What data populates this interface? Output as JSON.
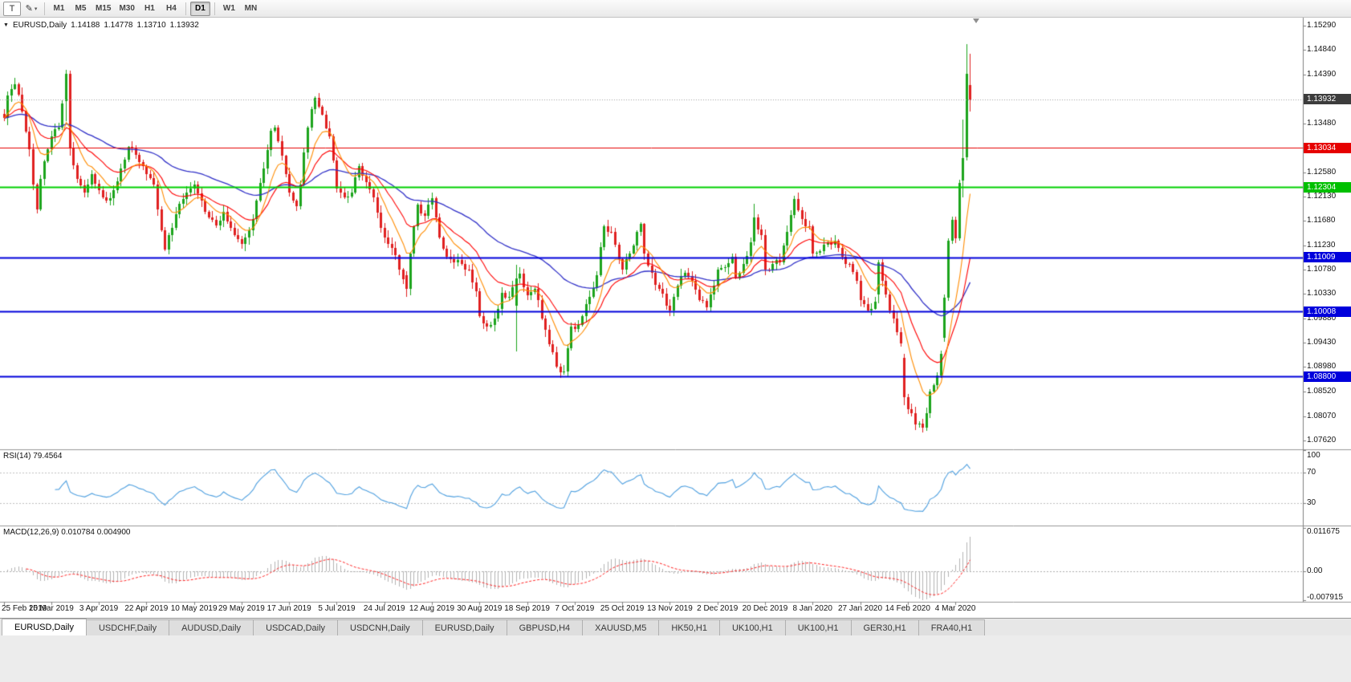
{
  "toolbar": {
    "tools": [
      {
        "label": "T",
        "name": "text-tool-button",
        "boxed": true
      },
      {
        "label": "✎",
        "name": "draw-tool-button",
        "dropdown": true
      }
    ],
    "timeframe_groups": [
      [
        "M1",
        "M5",
        "M15",
        "M30",
        "H1",
        "H4"
      ],
      [
        "D1"
      ],
      [
        "W1",
        "MN"
      ]
    ],
    "active_timeframe": "D1"
  },
  "icons": {
    "symbol_dropdown": "▼",
    "dropdown_small": "▾"
  },
  "chart": {
    "symbol": "EURUSD,Daily",
    "open": "1.14188",
    "high": "1.14778",
    "low": "1.13710",
    "close": "1.13932"
  },
  "price_axis": {
    "ticks": [
      "1.15290",
      "1.14840",
      "1.14390",
      "1.13930",
      "1.13480",
      "1.13030",
      "1.12580",
      "1.12130",
      "1.11680",
      "1.11230",
      "1.10780",
      "1.10330",
      "1.09880",
      "1.09430",
      "1.08980",
      "1.08520",
      "1.08070",
      "1.07620"
    ],
    "badges": [
      {
        "text": "1.13932",
        "price": 1.13932,
        "bg": "#3c3c3c",
        "name": "last-price-badge"
      },
      {
        "text": "1.13034",
        "price": 1.13034,
        "bg": "#e60000",
        "name": "red-hline-badge"
      },
      {
        "text": "1.12304",
        "price": 1.12304,
        "bg": "#00c000",
        "name": "green-hline-badge"
      },
      {
        "text": "1.11009",
        "price": 1.11009,
        "bg": "#0000dc",
        "name": "blue-hline-badge-1"
      },
      {
        "text": "1.10008",
        "price": 1.10008,
        "bg": "#0000dc",
        "name": "blue-hline-badge-2"
      },
      {
        "text": "1.08800",
        "price": 1.088,
        "bg": "#0000dc",
        "name": "blue-hline-badge-3"
      }
    ]
  },
  "rsi": {
    "label": "RSI(14)",
    "value": "79.4564",
    "scale": [
      {
        "text": "100",
        "value": 100,
        "line": false
      },
      {
        "text": "70",
        "value": 70,
        "line": true
      },
      {
        "text": "30",
        "value": 30,
        "line": true
      }
    ]
  },
  "macd": {
    "label": "MACD(12,26,9)",
    "value": "0.010784 0.004900",
    "scale": [
      {
        "text": "0.011675",
        "value": 0.011675
      },
      {
        "text": "0.00",
        "value": 0
      },
      {
        "text": "-0.007915",
        "value": -0.007915
      }
    ]
  },
  "date_axis": {
    "labels": [
      {
        "text": "25 Feb 2019",
        "index": 0
      },
      {
        "text": "15 Mar 2019",
        "index": 13
      },
      {
        "text": "3 Apr 2019",
        "index": 26
      },
      {
        "text": "22 Apr 2019",
        "index": 39
      },
      {
        "text": "10 May 2019",
        "index": 52
      },
      {
        "text": "29 May 2019",
        "index": 65
      },
      {
        "text": "17 Jun 2019",
        "index": 78
      },
      {
        "text": "5 Jul 2019",
        "index": 91
      },
      {
        "text": "24 Jul 2019",
        "index": 104
      },
      {
        "text": "12 Aug 2019",
        "index": 117
      },
      {
        "text": "30 Aug 2019",
        "index": 130
      },
      {
        "text": "18 Sep 2019",
        "index": 143
      },
      {
        "text": "7 Oct 2019",
        "index": 156
      },
      {
        "text": "25 Oct 2019",
        "index": 169
      },
      {
        "text": "13 Nov 2019",
        "index": 182
      },
      {
        "text": "2 Dec 2019",
        "index": 195
      },
      {
        "text": "20 Dec 2019",
        "index": 208
      },
      {
        "text": "8 Jan 2020",
        "index": 221
      },
      {
        "text": "27 Jan 2020",
        "index": 234
      },
      {
        "text": "14 Feb 2020",
        "index": 247
      },
      {
        "text": "4 Mar 2020",
        "index": 260
      }
    ]
  },
  "tabs": {
    "items": [
      {
        "label": "EURUSD,Daily",
        "active": true
      },
      {
        "label": "USDCHF,Daily",
        "active": false
      },
      {
        "label": "AUDUSD,Daily",
        "active": false
      },
      {
        "label": "USDCAD,Daily",
        "active": false
      },
      {
        "label": "USDCNH,Daily",
        "active": false
      },
      {
        "label": "EURUSD,Daily",
        "active": false
      },
      {
        "label": "GBPUSD,H4",
        "active": false
      },
      {
        "label": "XAUUSD,M5",
        "active": false
      },
      {
        "label": "HK50,H1",
        "active": false
      },
      {
        "label": "UK100,H1",
        "active": false
      },
      {
        "label": "UK100,H1",
        "active": false
      },
      {
        "label": "GER30,H1",
        "active": false
      },
      {
        "label": "FRA40,H1",
        "active": false
      }
    ]
  },
  "colors": {
    "candle_up": "#1ca41c",
    "candle_down": "#e02020",
    "ma_fast": "#ff8c00",
    "ma_mid": "#ff0000",
    "ma_slow": "#3030c8",
    "rsi_line": "#4fa0e0",
    "macd_hist": "#b4b4b4",
    "macd_signal": "#ff2020",
    "bid_line": "#a0a0a0",
    "pane_border": "#979797",
    "level_dotted": "#c0c0c0"
  },
  "chart_data": {
    "type": "candlestick",
    "symbol": "EURUSD",
    "timeframe": "Daily",
    "title": "EURUSD,Daily 1.14188 1.14778 1.13710 1.13932",
    "bar_count": 265,
    "price_axis_top": 1.1529,
    "price_axis_bottom": 1.0762,
    "last_bar_ohlc": {
      "open": 1.14188,
      "high": 1.14778,
      "low": 1.1371,
      "close": 1.13932
    },
    "close_anchors": [
      [
        0,
        1.1358
      ],
      [
        1,
        1.14
      ],
      [
        3,
        1.142
      ],
      [
        5,
        1.137
      ],
      [
        7,
        1.13
      ],
      [
        8,
        1.1235
      ],
      [
        9,
        1.119
      ],
      [
        10,
        1.1245
      ],
      [
        12,
        1.13
      ],
      [
        13,
        1.1325
      ],
      [
        15,
        1.134
      ],
      [
        16,
        1.1385
      ],
      [
        17,
        1.144
      ],
      [
        18,
        1.1302
      ],
      [
        20,
        1.1245
      ],
      [
        22,
        1.122
      ],
      [
        24,
        1.1255
      ],
      [
        26,
        1.1225
      ],
      [
        28,
        1.1205
      ],
      [
        30,
        1.1225
      ],
      [
        32,
        1.1265
      ],
      [
        34,
        1.1305
      ],
      [
        36,
        1.129
      ],
      [
        38,
        1.127
      ],
      [
        39,
        1.1255
      ],
      [
        41,
        1.1235
      ],
      [
        43,
        1.115
      ],
      [
        44,
        1.1115
      ],
      [
        46,
        1.1155
      ],
      [
        48,
        1.12
      ],
      [
        50,
        1.122
      ],
      [
        52,
        1.1235
      ],
      [
        54,
        1.1205
      ],
      [
        56,
        1.1175
      ],
      [
        58,
        1.116
      ],
      [
        60,
        1.1185
      ],
      [
        62,
        1.1155
      ],
      [
        64,
        1.1135
      ],
      [
        65,
        1.1125
      ],
      [
        67,
        1.115
      ],
      [
        69,
        1.1205
      ],
      [
        71,
        1.1265
      ],
      [
        73,
        1.1335
      ],
      [
        74,
        1.134
      ],
      [
        75,
        1.1315
      ],
      [
        77,
        1.1255
      ],
      [
        78,
        1.122
      ],
      [
        79,
        1.1205
      ],
      [
        80,
        1.1195
      ],
      [
        81,
        1.1235
      ],
      [
        82,
        1.1295
      ],
      [
        84,
        1.1375
      ],
      [
        85,
        1.1395
      ],
      [
        87,
        1.1365
      ],
      [
        89,
        1.1325
      ],
      [
        90,
        1.128
      ],
      [
        91,
        1.1228
      ],
      [
        93,
        1.1212
      ],
      [
        95,
        1.122
      ],
      [
        97,
        1.127
      ],
      [
        99,
        1.124
      ],
      [
        101,
        1.1212
      ],
      [
        103,
        1.1155
      ],
      [
        104,
        1.1138
      ],
      [
        106,
        1.1118
      ],
      [
        108,
        1.1078
      ],
      [
        109,
        1.106
      ],
      [
        110,
        1.1042
      ],
      [
        111,
        1.1108
      ],
      [
        113,
        1.1198
      ],
      [
        115,
        1.1178
      ],
      [
        117,
        1.121
      ],
      [
        119,
        1.1138
      ],
      [
        121,
        1.1102
      ],
      [
        123,
        1.1092
      ],
      [
        125,
        1.1088
      ],
      [
        127,
        1.1078
      ],
      [
        129,
        1.1038
      ],
      [
        130,
        1.0992
      ],
      [
        132,
        1.0972
      ],
      [
        134,
        1.0988
      ],
      [
        136,
        1.1035
      ],
      [
        138,
        1.1028
      ],
      [
        140,
        1.1062
      ],
      [
        141,
        1.107
      ],
      [
        142,
        1.1045
      ],
      [
        143,
        1.103
      ],
      [
        145,
        1.1042
      ],
      [
        147,
        1.0988
      ],
      [
        149,
        1.094
      ],
      [
        151,
        1.0898
      ],
      [
        153,
        1.089
      ],
      [
        154,
        1.0932
      ],
      [
        155,
        1.0972
      ],
      [
        156,
        1.0968
      ],
      [
        158,
        1.0992
      ],
      [
        160,
        1.1028
      ],
      [
        162,
        1.1068
      ],
      [
        163,
        1.112
      ],
      [
        164,
        1.1158
      ],
      [
        166,
        1.1148
      ],
      [
        168,
        1.1098
      ],
      [
        169,
        1.1078
      ],
      [
        171,
        1.1108
      ],
      [
        173,
        1.1148
      ],
      [
        174,
        1.1162
      ],
      [
        175,
        1.1108
      ],
      [
        177,
        1.1072
      ],
      [
        179,
        1.1042
      ],
      [
        181,
        1.1012
      ],
      [
        182,
        1.1002
      ],
      [
        184,
        1.1048
      ],
      [
        186,
        1.1072
      ],
      [
        188,
        1.1058
      ],
      [
        190,
        1.1022
      ],
      [
        192,
        1.1008
      ],
      [
        194,
        1.1048
      ],
      [
        195,
        1.1078
      ],
      [
        197,
        1.1082
      ],
      [
        199,
        1.1102
      ],
      [
        200,
        1.1062
      ],
      [
        202,
        1.1088
      ],
      [
        204,
        1.1128
      ],
      [
        205,
        1.1175
      ],
      [
        206,
        1.1152
      ],
      [
        207,
        1.1142
      ],
      [
        208,
        1.1078
      ],
      [
        210,
        1.1088
      ],
      [
        212,
        1.1092
      ],
      [
        214,
        1.1148
      ],
      [
        216,
        1.1208
      ],
      [
        218,
        1.1172
      ],
      [
        220,
        1.1158
      ],
      [
        221,
        1.1108
      ],
      [
        223,
        1.1112
      ],
      [
        225,
        1.1128
      ],
      [
        227,
        1.1132
      ],
      [
        229,
        1.1102
      ],
      [
        231,
        1.1088
      ],
      [
        233,
        1.1058
      ],
      [
        234,
        1.1022
      ],
      [
        236,
        1.1002
      ],
      [
        238,
        1.1018
      ],
      [
        239,
        1.1092
      ],
      [
        240,
        1.1058
      ],
      [
        242,
        1.1002
      ],
      [
        244,
        1.0962
      ],
      [
        245,
        1.0942
      ],
      [
        246,
        1.0842
      ],
      [
        248,
        1.0812
      ],
      [
        249,
        1.0792
      ],
      [
        251,
        1.0786
      ],
      [
        253,
        1.0852
      ],
      [
        255,
        1.0882
      ],
      [
        256,
        1.0922
      ],
      [
        257,
        1.1026
      ],
      [
        258,
        1.1132
      ],
      [
        259,
        1.117
      ],
      [
        260,
        1.1136
      ],
      [
        261,
        1.1238
      ],
      [
        262,
        1.1284
      ],
      [
        263,
        1.144
      ],
      [
        264,
        1.13932
      ]
    ],
    "explicit_bars": {
      "17": {
        "o": 1.139,
        "h": 1.1448,
        "l": 1.1352,
        "c": 1.144
      },
      "18": {
        "o": 1.144,
        "h": 1.1446,
        "l": 1.1288,
        "c": 1.1302
      },
      "110": {
        "o": 1.1068,
        "h": 1.1075,
        "l": 1.1027,
        "c": 1.1042
      },
      "140": {
        "o": 1.1012,
        "h": 1.1087,
        "l": 1.0927,
        "c": 1.1062
      },
      "205": {
        "o": 1.113,
        "h": 1.12,
        "l": 1.1122,
        "c": 1.1175
      },
      "239": {
        "o": 1.1032,
        "h": 1.1096,
        "l": 1.1015,
        "c": 1.1092
      },
      "246": {
        "o": 1.0915,
        "h": 1.0922,
        "l": 1.0827,
        "c": 1.0842
      },
      "257": {
        "o": 1.0952,
        "h": 1.1032,
        "l": 1.0945,
        "c": 1.1026
      },
      "262": {
        "o": 1.1242,
        "h": 1.1355,
        "l": 1.1212,
        "c": 1.1284
      },
      "263": {
        "o": 1.1286,
        "h": 1.1495,
        "l": 1.128,
        "c": 1.144
      },
      "264": {
        "o": 1.14188,
        "h": 1.14778,
        "l": 1.1371,
        "c": 1.13932
      }
    },
    "hlines": [
      {
        "price": 1.13034,
        "color": "#e60000",
        "width": 1
      },
      {
        "price": 1.12304,
        "color": "#00d000",
        "width": 2
      },
      {
        "price": 1.11009,
        "color": "#0000dc",
        "width": 2
      },
      {
        "price": 1.10008,
        "color": "#0000dc",
        "width": 2
      },
      {
        "price": 1.088,
        "color": "#0000dc",
        "width": 2
      }
    ],
    "bid_price": 1.13932,
    "indicators": [
      {
        "name": "MA fast",
        "period": 9,
        "method": "ema",
        "color": "#ff8c00"
      },
      {
        "name": "MA mid",
        "period": 20,
        "method": "ema",
        "color": "#ff0000"
      },
      {
        "name": "MA slow",
        "period": 55,
        "method": "ema",
        "color": "#3030c8"
      },
      {
        "name": "RSI",
        "period": 14,
        "last_value": 79.4564,
        "levels": [
          70,
          30
        ]
      },
      {
        "name": "MACD",
        "fast": 12,
        "slow": 26,
        "signal": 9,
        "last_main": 0.010784,
        "last_signal": 0.0049
      }
    ],
    "macd_axis": {
      "max": 0.011675,
      "min": -0.007915
    }
  }
}
